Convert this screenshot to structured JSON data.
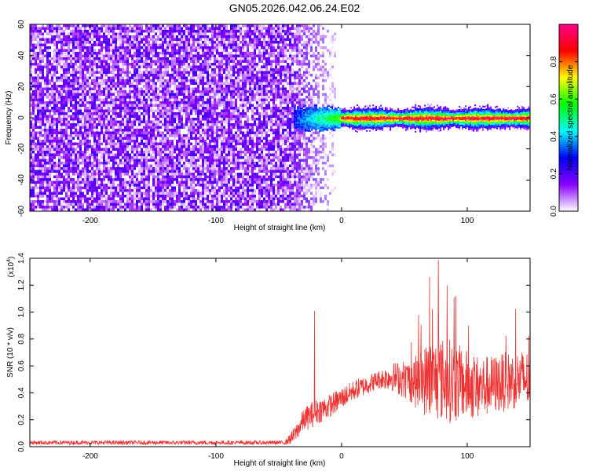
{
  "figure": {
    "title": "GN05.2026.042.06.24.E02"
  },
  "chart_data": [
    {
      "type": "heatmap",
      "title": "GN05.2026.042.06.24.E02",
      "xlabel": "Height of straight line (km)",
      "ylabel": "Frequency (Hz)",
      "xlim": [
        -248,
        150
      ],
      "ylim": [
        -60,
        60
      ],
      "xticks": [
        -200,
        -100,
        0,
        100
      ],
      "yticks": [
        60,
        40,
        20,
        0,
        -20,
        -40,
        -60
      ],
      "noise_region_km": [
        -248,
        -5
      ],
      "line_region_km": [
        -38,
        150
      ],
      "line_frequency_hz": 0,
      "colorbar": {
        "label": "Normalized spectral amplitude",
        "range": [
          0.0,
          1.0
        ],
        "ticks": [
          0.0,
          0.2,
          0.4,
          0.6,
          0.8
        ],
        "colors": [
          "#ffffff",
          "#8800ff",
          "#0000ff",
          "#00ffff",
          "#00ff00",
          "#ffff00",
          "#ff0000",
          "#ff0088"
        ]
      }
    },
    {
      "type": "line",
      "xlabel": "Height of straight line (km)",
      "ylabel": "SNR (10 * v/v)",
      "yscale_label": "(x10",
      "yscale_exp": "4",
      "xlim": [
        -248,
        150
      ],
      "ylim": [
        0,
        1.4
      ],
      "xticks": [
        -200,
        -100,
        0,
        100
      ],
      "yticks": [
        0.0,
        0.2,
        0.4,
        0.6,
        0.8,
        1.0,
        1.2,
        1.4
      ],
      "color": "#ee3333",
      "trend": [
        {
          "x": -248,
          "y": 0.03
        },
        {
          "x": -45,
          "y": 0.03
        },
        {
          "x": -38,
          "y": 0.08
        },
        {
          "x": -30,
          "y": 0.2
        },
        {
          "x": -20,
          "y": 0.26
        },
        {
          "x": -10,
          "y": 0.3
        },
        {
          "x": 0,
          "y": 0.36
        },
        {
          "x": 10,
          "y": 0.42
        },
        {
          "x": 20,
          "y": 0.46
        },
        {
          "x": 30,
          "y": 0.5
        },
        {
          "x": 40,
          "y": 0.52
        },
        {
          "x": 50,
          "y": 0.5
        },
        {
          "x": 60,
          "y": 0.48
        },
        {
          "x": 70,
          "y": 0.5
        },
        {
          "x": 80,
          "y": 0.5
        },
        {
          "x": 90,
          "y": 0.48
        },
        {
          "x": 100,
          "y": 0.46
        },
        {
          "x": 110,
          "y": 0.44
        },
        {
          "x": 120,
          "y": 0.46
        },
        {
          "x": 130,
          "y": 0.48
        },
        {
          "x": 140,
          "y": 0.5
        },
        {
          "x": 150,
          "y": 0.5
        }
      ],
      "spread": [
        {
          "x": -248,
          "y": 0.015
        },
        {
          "x": -45,
          "y": 0.015
        },
        {
          "x": -38,
          "y": 0.06
        },
        {
          "x": -25,
          "y": 0.1
        },
        {
          "x": 0,
          "y": 0.08
        },
        {
          "x": 30,
          "y": 0.07
        },
        {
          "x": 55,
          "y": 0.16
        },
        {
          "x": 70,
          "y": 0.3
        },
        {
          "x": 85,
          "y": 0.32
        },
        {
          "x": 100,
          "y": 0.26
        },
        {
          "x": 120,
          "y": 0.22
        },
        {
          "x": 150,
          "y": 0.22
        }
      ],
      "peaks": [
        {
          "x": -21.5,
          "y": 1.01
        },
        {
          "x": 77,
          "y": 1.39
        },
        {
          "x": 70,
          "y": 1.26
        },
        {
          "x": 84,
          "y": 1.2
        },
        {
          "x": 91,
          "y": 1.12
        }
      ]
    }
  ]
}
